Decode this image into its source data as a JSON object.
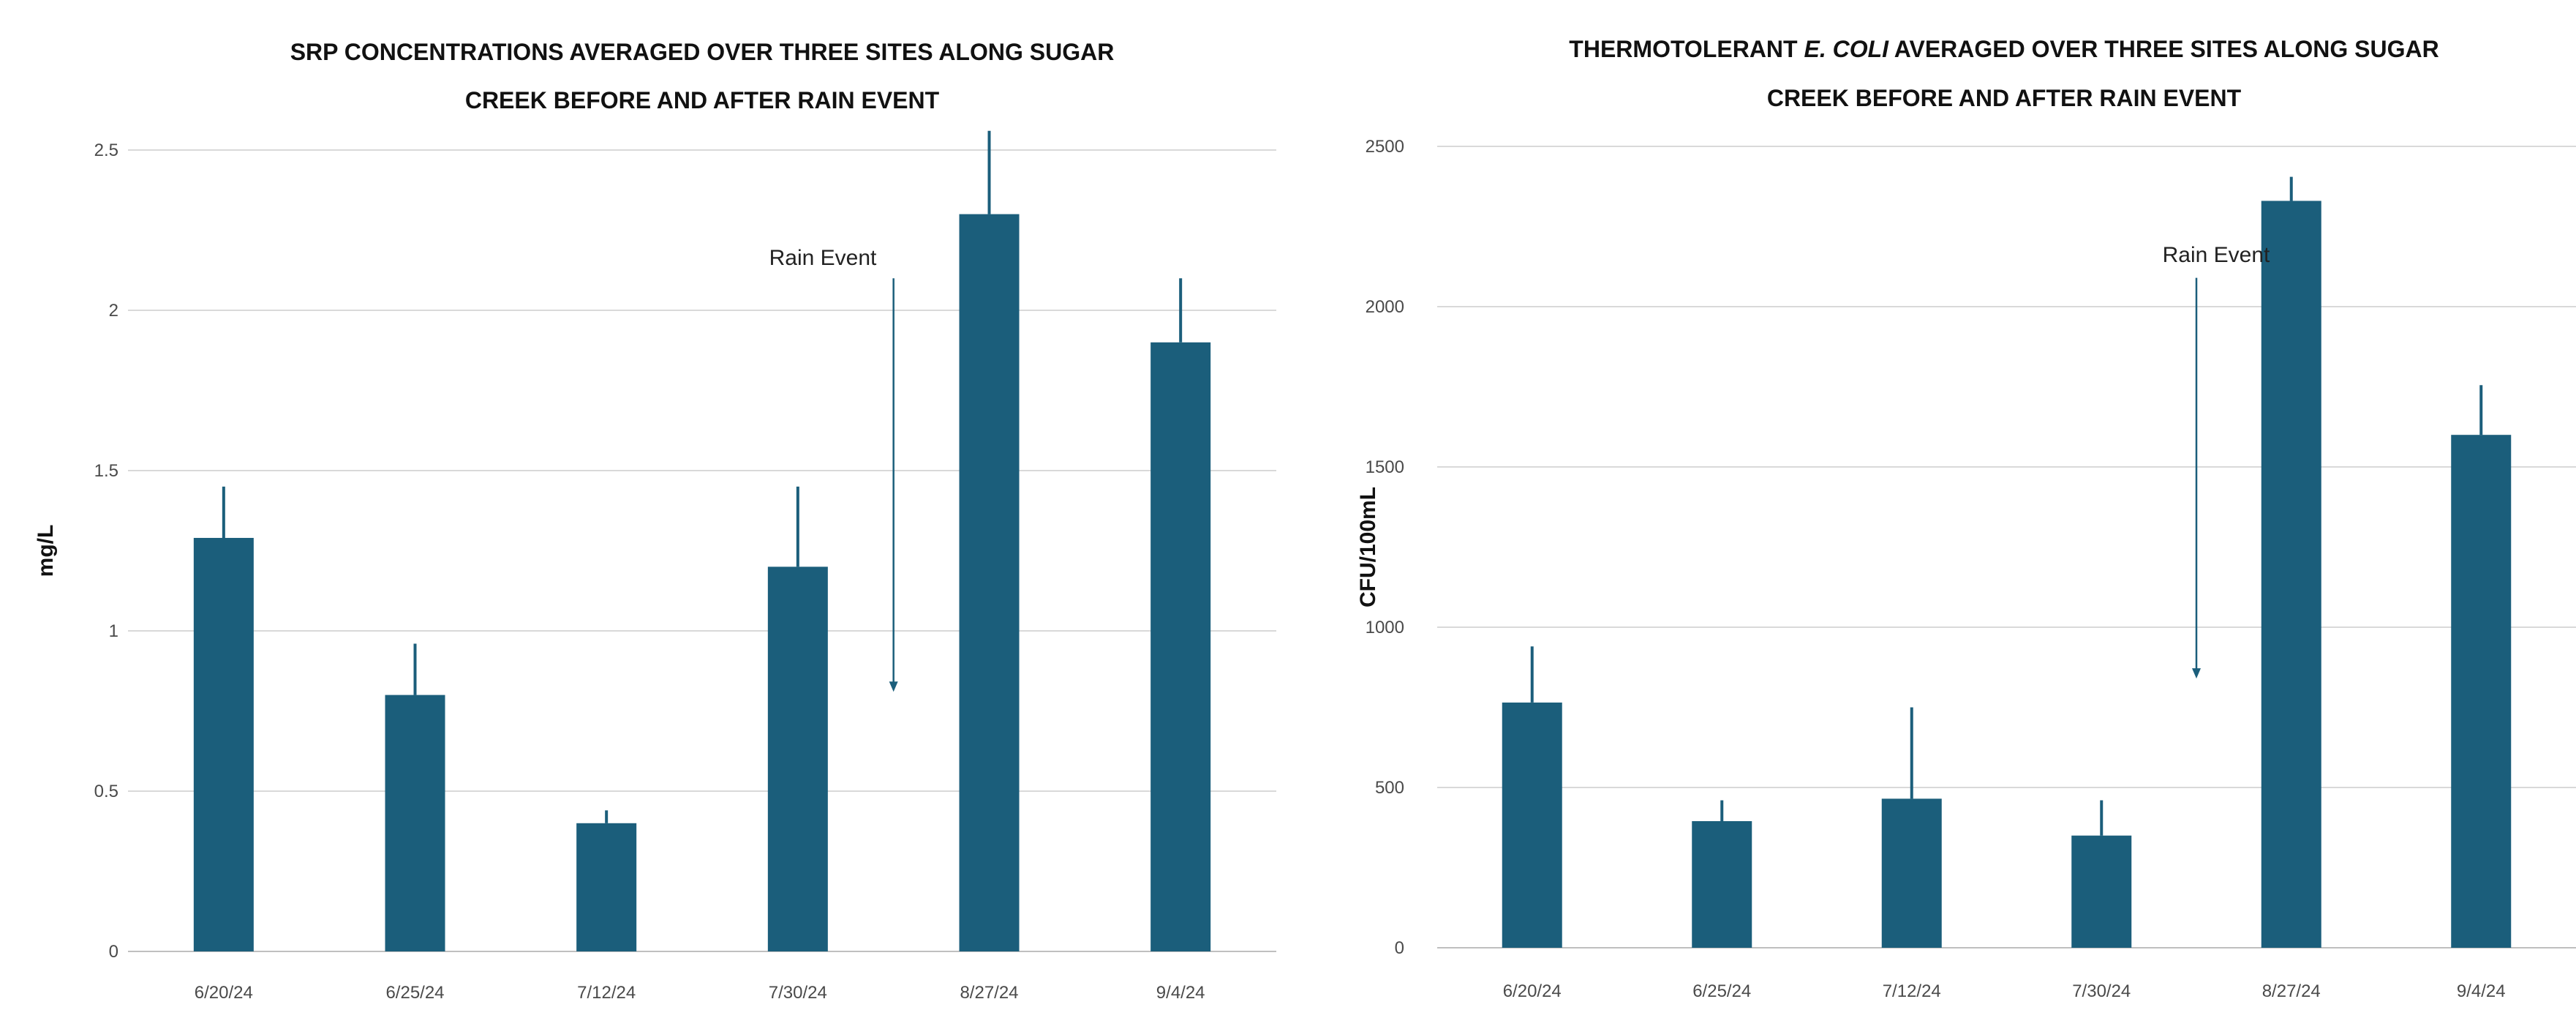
{
  "chart_data": [
    {
      "type": "bar",
      "title_lines": [
        [
          {
            "text": "SRP CONCENTRATIONS AVERAGED OVER THREE SITES ALONG SUGAR",
            "italic": false
          }
        ],
        [
          {
            "text": "CREEK BEFORE AND AFTER RAIN EVENT",
            "italic": false
          }
        ]
      ],
      "ylabel": "mg/L",
      "xlabel": "",
      "categories": [
        "6/20/24",
        "6/25/24",
        "7/12/24",
        "7/30/24",
        "8/27/24",
        "9/4/24"
      ],
      "values": [
        1.29,
        0.8,
        0.4,
        1.2,
        2.3,
        1.9
      ],
      "error_upper": [
        0.16,
        0.16,
        0.04,
        0.25,
        0.26,
        0.2
      ],
      "ylim": [
        0,
        2.5
      ],
      "yticks": [
        0,
        0.5,
        1,
        1.5,
        2,
        2.5
      ],
      "ytick_labels": [
        "0",
        "0.5",
        "1",
        "1.5",
        "2",
        "2.5"
      ],
      "bar_color": "#1b5e7b",
      "annotation": {
        "text": "Rain Event",
        "between": [
          "7/30/24",
          "8/27/24"
        ],
        "arrow_from": 2.1,
        "arrow_to": 0.81
      }
    },
    {
      "type": "bar",
      "title_lines": [
        [
          {
            "text": "THERMOTOLERANT ",
            "italic": false
          },
          {
            "text": "E. COLI",
            "italic": true
          },
          {
            "text": " AVERAGED OVER THREE SITES ALONG SUGAR",
            "italic": false
          }
        ],
        [
          {
            "text": "CREEK BEFORE AND AFTER RAIN EVENT",
            "italic": false
          }
        ]
      ],
      "ylabel": "CFU/100mL",
      "xlabel": "",
      "categories": [
        "6/20/24",
        "6/25/24",
        "7/12/24",
        "7/30/24",
        "8/27/24",
        "9/4/24"
      ],
      "values": [
        765,
        395,
        465,
        350,
        2330,
        1600
      ],
      "error_upper": [
        175,
        65,
        285,
        110,
        75,
        155
      ],
      "ylim": [
        0,
        2500
      ],
      "yticks": [
        0,
        500,
        1000,
        1500,
        2000,
        2500
      ],
      "ytick_labels": [
        "0",
        "500",
        "1000",
        "1500",
        "2000",
        "2500"
      ],
      "bar_color": "#1b5e7b",
      "annotation": {
        "text": "Rain Event",
        "between": [
          "7/30/24",
          "8/27/24"
        ],
        "arrow_from": 2090,
        "arrow_to": 840
      }
    }
  ]
}
